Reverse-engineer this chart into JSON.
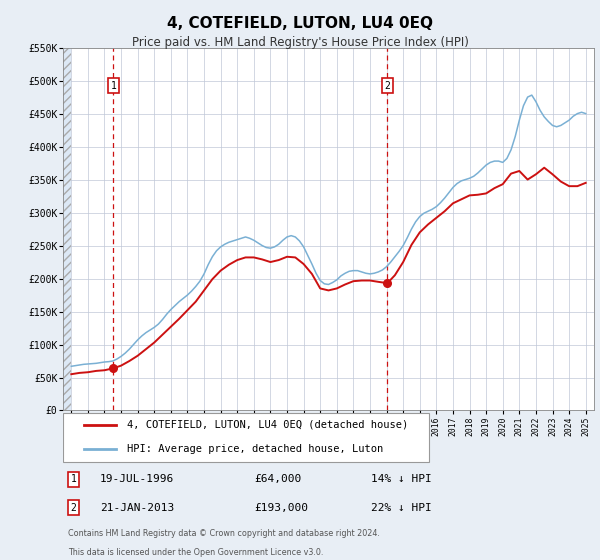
{
  "title": "4, COTEFIELD, LUTON, LU4 0EQ",
  "subtitle": "Price paid vs. HM Land Registry's House Price Index (HPI)",
  "background_color": "#e8eef5",
  "plot_bg_color": "#dce8f5",
  "chart_white_bg": "#ffffff",
  "grid_color": "#c0c8d8",
  "ylim": [
    0,
    550000
  ],
  "yticks": [
    0,
    50000,
    100000,
    150000,
    200000,
    250000,
    300000,
    350000,
    400000,
    450000,
    500000,
    550000
  ],
  "ytick_labels": [
    "£0",
    "£50K",
    "£100K",
    "£150K",
    "£200K",
    "£250K",
    "£300K",
    "£350K",
    "£400K",
    "£450K",
    "£500K",
    "£550K"
  ],
  "xlim_start": 1993.5,
  "xlim_end": 2025.5,
  "data_start": 1994.0,
  "xtick_years": [
    1994,
    1995,
    1996,
    1997,
    1998,
    1999,
    2000,
    2001,
    2002,
    2003,
    2004,
    2005,
    2006,
    2007,
    2008,
    2009,
    2010,
    2011,
    2012,
    2013,
    2014,
    2015,
    2016,
    2017,
    2018,
    2019,
    2020,
    2021,
    2022,
    2023,
    2024,
    2025
  ],
  "sale1_date": 1996.54,
  "sale1_price": 64000,
  "sale1_label": "1",
  "sale1_hpi_pct": "14% ↓ HPI",
  "sale1_date_str": "19-JUL-1996",
  "sale1_price_str": "£64,000",
  "sale2_date": 2013.05,
  "sale2_price": 193000,
  "sale2_label": "2",
  "sale2_hpi_pct": "22% ↓ HPI",
  "sale2_date_str": "21-JAN-2013",
  "sale2_price_str": "£193,000",
  "line1_color": "#cc1111",
  "line2_color": "#7ab0d4",
  "line1_label": "4, COTEFIELD, LUTON, LU4 0EQ (detached house)",
  "line2_label": "HPI: Average price, detached house, Luton",
  "footer_line1": "Contains HM Land Registry data © Crown copyright and database right 2024.",
  "footer_line2": "This data is licensed under the Open Government Licence v3.0.",
  "hpi_x": [
    1994.0,
    1994.25,
    1994.5,
    1994.75,
    1995.0,
    1995.25,
    1995.5,
    1995.75,
    1996.0,
    1996.25,
    1996.5,
    1996.75,
    1997.0,
    1997.25,
    1997.5,
    1997.75,
    1998.0,
    1998.25,
    1998.5,
    1998.75,
    1999.0,
    1999.25,
    1999.5,
    1999.75,
    2000.0,
    2000.25,
    2000.5,
    2000.75,
    2001.0,
    2001.25,
    2001.5,
    2001.75,
    2002.0,
    2002.25,
    2002.5,
    2002.75,
    2003.0,
    2003.25,
    2003.5,
    2003.75,
    2004.0,
    2004.25,
    2004.5,
    2004.75,
    2005.0,
    2005.25,
    2005.5,
    2005.75,
    2006.0,
    2006.25,
    2006.5,
    2006.75,
    2007.0,
    2007.25,
    2007.5,
    2007.75,
    2008.0,
    2008.25,
    2008.5,
    2008.75,
    2009.0,
    2009.25,
    2009.5,
    2009.75,
    2010.0,
    2010.25,
    2010.5,
    2010.75,
    2011.0,
    2011.25,
    2011.5,
    2011.75,
    2012.0,
    2012.25,
    2012.5,
    2012.75,
    2013.0,
    2013.25,
    2013.5,
    2013.75,
    2014.0,
    2014.25,
    2014.5,
    2014.75,
    2015.0,
    2015.25,
    2015.5,
    2015.75,
    2016.0,
    2016.25,
    2016.5,
    2016.75,
    2017.0,
    2017.25,
    2017.5,
    2017.75,
    2018.0,
    2018.25,
    2018.5,
    2018.75,
    2019.0,
    2019.25,
    2019.5,
    2019.75,
    2020.0,
    2020.25,
    2020.5,
    2020.75,
    2021.0,
    2021.25,
    2021.5,
    2021.75,
    2022.0,
    2022.25,
    2022.5,
    2022.75,
    2023.0,
    2023.25,
    2023.5,
    2023.75,
    2024.0,
    2024.25,
    2024.5,
    2024.75,
    2025.0
  ],
  "hpi_y": [
    67000,
    68000,
    69000,
    70000,
    70500,
    71000,
    71500,
    72500,
    73500,
    74000,
    75000,
    78000,
    82000,
    87000,
    93000,
    100000,
    107000,
    113000,
    118000,
    122000,
    126000,
    131000,
    138000,
    146000,
    153000,
    159000,
    165000,
    170000,
    175000,
    181000,
    188000,
    196000,
    207000,
    221000,
    233000,
    242000,
    248000,
    252000,
    255000,
    257000,
    259000,
    261000,
    263000,
    261000,
    258000,
    254000,
    250000,
    247000,
    246000,
    248000,
    252000,
    258000,
    263000,
    265000,
    263000,
    257000,
    248000,
    235000,
    222000,
    208000,
    197000,
    192000,
    191000,
    194000,
    198000,
    204000,
    208000,
    211000,
    212000,
    212000,
    210000,
    208000,
    207000,
    208000,
    210000,
    213000,
    218000,
    225000,
    233000,
    241000,
    250000,
    262000,
    275000,
    286000,
    294000,
    299000,
    302000,
    305000,
    309000,
    315000,
    322000,
    330000,
    338000,
    344000,
    348000,
    350000,
    352000,
    355000,
    360000,
    366000,
    372000,
    376000,
    378000,
    378000,
    376000,
    382000,
    395000,
    415000,
    440000,
    462000,
    475000,
    478000,
    468000,
    455000,
    445000,
    438000,
    432000,
    430000,
    432000,
    436000,
    440000,
    446000,
    450000,
    452000,
    450000
  ],
  "sale_line_x": [
    1994.0,
    1994.5,
    1995.0,
    1995.5,
    1996.0,
    1996.54,
    1997.0,
    1997.5,
    1998.0,
    1998.5,
    1999.0,
    1999.5,
    2000.0,
    2000.5,
    2001.0,
    2001.5,
    2002.0,
    2002.5,
    2003.0,
    2003.5,
    2004.0,
    2004.5,
    2005.0,
    2005.5,
    2006.0,
    2006.5,
    2007.0,
    2007.5,
    2008.0,
    2008.5,
    2009.0,
    2009.5,
    2010.0,
    2010.5,
    2011.0,
    2011.5,
    2012.0,
    2012.5,
    2013.05,
    2013.5,
    2014.0,
    2014.5,
    2015.0,
    2015.5,
    2016.0,
    2016.5,
    2017.0,
    2017.5,
    2018.0,
    2018.5,
    2019.0,
    2019.5,
    2020.0,
    2020.5,
    2021.0,
    2021.5,
    2022.0,
    2022.5,
    2023.0,
    2023.5,
    2024.0,
    2024.5,
    2025.0
  ],
  "sale_line_y": [
    55000,
    57000,
    58000,
    60000,
    61000,
    64000,
    68000,
    75000,
    83000,
    93000,
    103000,
    115000,
    127000,
    139000,
    152000,
    165000,
    182000,
    199000,
    212000,
    221000,
    228000,
    232000,
    232000,
    229000,
    225000,
    228000,
    233000,
    232000,
    222000,
    207000,
    185000,
    182000,
    185000,
    191000,
    196000,
    197000,
    197000,
    195000,
    193000,
    205000,
    225000,
    251000,
    270000,
    282000,
    292000,
    302000,
    314000,
    320000,
    326000,
    327000,
    329000,
    337000,
    343000,
    359000,
    363000,
    350000,
    358000,
    368000,
    358000,
    347000,
    340000,
    340000,
    345000
  ]
}
